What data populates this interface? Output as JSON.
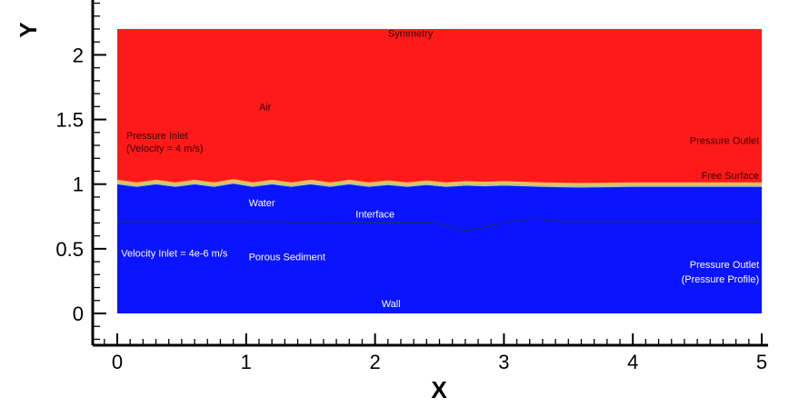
{
  "chart_data": {
    "type": "area",
    "xlabel": "X",
    "ylabel": "Y",
    "xlim": [
      -0.2,
      5.0
    ],
    "ylim": [
      -0.25,
      2.45
    ],
    "x_ticks": [
      0,
      1,
      2,
      3,
      4,
      5
    ],
    "y_ticks": [
      0,
      0.5,
      1,
      1.5,
      2
    ],
    "x_tick_labels": [
      "0",
      "1",
      "2",
      "3",
      "4",
      "5"
    ],
    "y_tick_labels": [
      "0",
      "0.5",
      "1",
      "1.5",
      "2"
    ],
    "domain": {
      "x": [
        0,
        5
      ],
      "y": [
        0,
        2.2
      ]
    },
    "colors": {
      "air": "#ff1a1a",
      "water": "#0a14ff",
      "surface": "#e8c060",
      "interface": "#1a2a8a",
      "label_dark": "#3a0000",
      "label_light": "#ffffff"
    },
    "free_surface": {
      "x": [
        0,
        0.15,
        0.3,
        0.45,
        0.6,
        0.75,
        0.9,
        1.05,
        1.2,
        1.35,
        1.5,
        1.65,
        1.8,
        1.95,
        2.1,
        2.25,
        2.4,
        2.55,
        2.7,
        2.85,
        3.0,
        3.3,
        3.6,
        4.0,
        4.5,
        5.0
      ],
      "y": [
        1.02,
        1.0,
        1.02,
        1.0,
        1.02,
        1.0,
        1.025,
        1.0,
        1.02,
        1.0,
        1.02,
        1.0,
        1.02,
        1.0,
        1.015,
        1.0,
        1.015,
        1.0,
        1.01,
        1.005,
        1.01,
        1.0,
        0.995,
        1.0,
        1.0,
        1.0
      ]
    },
    "interface_line": {
      "x": [
        0,
        1.0,
        2.0,
        2.45,
        2.55,
        2.65,
        2.75,
        2.9,
        3.05,
        3.25,
        3.45,
        3.6,
        4.0,
        5.0
      ],
      "y": [
        0.71,
        0.71,
        0.705,
        0.705,
        0.68,
        0.645,
        0.645,
        0.68,
        0.71,
        0.73,
        0.71,
        0.71,
        0.71,
        0.71
      ]
    },
    "labels": [
      {
        "name": "label-symmetry",
        "text": "Symmetry",
        "x": 2.1,
        "y": 2.14,
        "tone": "dark",
        "anchor": "start"
      },
      {
        "name": "label-air",
        "text": "Air",
        "x": 1.1,
        "y": 1.57,
        "tone": "dark",
        "anchor": "start"
      },
      {
        "name": "label-pressure-inlet",
        "text": "Pressure Inlet",
        "x": 0.07,
        "y": 1.35,
        "tone": "dark",
        "anchor": "start"
      },
      {
        "name": "label-pressure-inlet-velocity",
        "text": "(Velocity = 4 m/s)",
        "x": 0.07,
        "y": 1.25,
        "tone": "dark",
        "anchor": "start"
      },
      {
        "name": "label-pressure-outlet-top",
        "text": "Pressure Outlet",
        "x": 4.98,
        "y": 1.31,
        "tone": "dark",
        "anchor": "end"
      },
      {
        "name": "label-free-surface",
        "text": "Free Surface",
        "x": 4.98,
        "y": 1.04,
        "tone": "dark",
        "anchor": "end"
      },
      {
        "name": "label-water",
        "text": "Water",
        "x": 1.02,
        "y": 0.83,
        "tone": "light",
        "anchor": "start"
      },
      {
        "name": "label-interface",
        "text": "Interface",
        "x": 1.85,
        "y": 0.74,
        "tone": "light",
        "anchor": "start"
      },
      {
        "name": "label-velocity-inlet",
        "text": "Velocity Inlet = 4e-6 m/s",
        "x": 0.03,
        "y": 0.44,
        "tone": "light",
        "anchor": "start"
      },
      {
        "name": "label-porous-sediment",
        "text": "Porous Sediment",
        "x": 1.02,
        "y": 0.41,
        "tone": "light",
        "anchor": "start"
      },
      {
        "name": "label-pressure-outlet-bottom",
        "text": "Pressure Outlet",
        "x": 4.98,
        "y": 0.35,
        "tone": "light",
        "anchor": "end"
      },
      {
        "name": "label-pressure-profile",
        "text": "(Pressure Profile)",
        "x": 4.98,
        "y": 0.24,
        "tone": "light",
        "anchor": "end"
      },
      {
        "name": "label-wall",
        "text": "Wall",
        "x": 2.05,
        "y": 0.05,
        "tone": "light",
        "anchor": "start"
      }
    ]
  }
}
